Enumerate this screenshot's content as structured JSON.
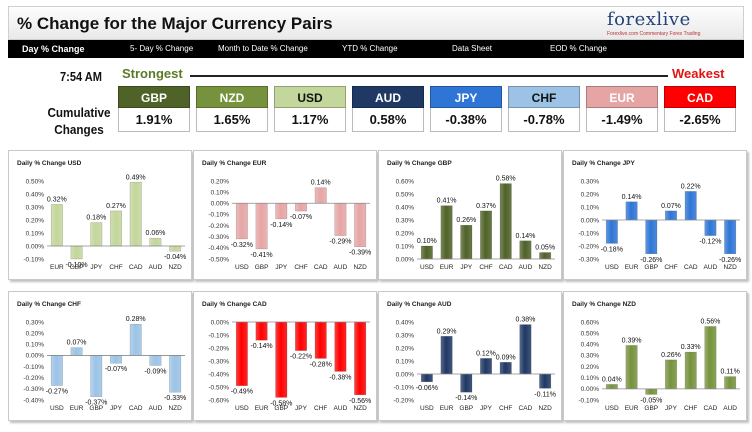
{
  "header": {
    "title": "% Change for the Major Currency Pairs",
    "logo": "forexlive",
    "logo_tagline": "Forexlive.com Commentary Forex Trading"
  },
  "nav": {
    "tabs": [
      {
        "label": "Day % Change",
        "active": true
      },
      {
        "label": "5- Day % Change",
        "active": false
      },
      {
        "label": "Month to Date % Change",
        "active": false
      },
      {
        "label": "YTD % Change",
        "active": false
      },
      {
        "label": "Data Sheet",
        "active": false
      },
      {
        "label": "EOD % Change",
        "active": false
      }
    ]
  },
  "summary": {
    "time": "7:54 AM",
    "strongest_label": "Strongest",
    "weakest_label": "Weakest",
    "cumulative_label_1": "Cumulative",
    "cumulative_label_2": "Changes",
    "currencies": [
      {
        "name": "GBP",
        "value": "1.91%",
        "bg": "#4f6228",
        "fg": "#ffffff"
      },
      {
        "name": "NZD",
        "value": "1.65%",
        "bg": "#76923c",
        "fg": "#ffffff"
      },
      {
        "name": "USD",
        "value": "1.17%",
        "bg": "#c3d69b",
        "fg": "#111111"
      },
      {
        "name": "AUD",
        "value": "0.58%",
        "bg": "#1f3864",
        "fg": "#ffffff"
      },
      {
        "name": "JPY",
        "value": "-0.38%",
        "bg": "#2e75d6",
        "fg": "#ffffff"
      },
      {
        "name": "CHF",
        "value": "-0.78%",
        "bg": "#9cc3e6",
        "fg": "#111111"
      },
      {
        "name": "EUR",
        "value": "-1.49%",
        "bg": "#e6a5a5",
        "fg": "#ffffff"
      },
      {
        "name": "CAD",
        "value": "-2.65%",
        "bg": "#ff0000",
        "fg": "#ffffff"
      }
    ]
  },
  "chart_data": [
    {
      "type": "bar",
      "title": "Daily % Change USD",
      "categories": [
        "EUR",
        "GBP",
        "JPY",
        "CHF",
        "CAD",
        "AUD",
        "NZD"
      ],
      "values": [
        0.32,
        -0.1,
        0.18,
        0.27,
        0.49,
        0.06,
        -0.04
      ],
      "labels": [
        "0.32%",
        "-0.10%",
        "0.18%",
        "0.27%",
        "0.49%",
        "0.06%",
        "-0.04%"
      ],
      "ylim": [
        -0.1,
        0.5
      ],
      "ticks": [
        "-0.10%",
        "0.00%",
        "0.10%",
        "0.20%",
        "0.30%",
        "0.40%",
        "0.50%"
      ],
      "color": "#c3d69b"
    },
    {
      "type": "bar",
      "title": "Daily % Change EUR",
      "categories": [
        "USD",
        "GBP",
        "JPY",
        "CHF",
        "CAD",
        "AUD",
        "NZD"
      ],
      "values": [
        -0.32,
        -0.41,
        -0.14,
        -0.07,
        0.14,
        -0.29,
        -0.39
      ],
      "labels": [
        "-0.32%",
        "-0.41%",
        "-0.14%",
        "-0.07%",
        "0.14%",
        "-0.29%",
        "-0.39%"
      ],
      "ylim": [
        -0.5,
        0.2
      ],
      "ticks": [
        "-0.50%",
        "-0.40%",
        "-0.30%",
        "-0.20%",
        "-0.10%",
        "0.00%",
        "0.10%",
        "0.20%"
      ],
      "color": "#e6a5a5"
    },
    {
      "type": "bar",
      "title": "Daily % Change GBP",
      "categories": [
        "USD",
        "EUR",
        "JPY",
        "CHF",
        "CAD",
        "AUD",
        "NZD"
      ],
      "values": [
        0.1,
        0.41,
        0.26,
        0.37,
        0.58,
        0.14,
        0.05
      ],
      "labels": [
        "0.10%",
        "0.41%",
        "0.26%",
        "0.37%",
        "0.58%",
        "0.14%",
        "0.05%"
      ],
      "ylim": [
        0.0,
        0.6
      ],
      "ticks": [
        "0.00%",
        "0.10%",
        "0.20%",
        "0.30%",
        "0.40%",
        "0.50%",
        "0.60%"
      ],
      "color": "#4f6228"
    },
    {
      "type": "bar",
      "title": "Daily % Change JPY",
      "categories": [
        "USD",
        "EUR",
        "GBP",
        "CHF",
        "CAD",
        "AUD",
        "NZD"
      ],
      "values": [
        -0.18,
        0.14,
        -0.26,
        0.07,
        0.22,
        -0.12,
        -0.26
      ],
      "labels": [
        "-0.18%",
        "0.14%",
        "-0.26%",
        "0.07%",
        "0.22%",
        "-0.12%",
        "-0.26%"
      ],
      "ylim": [
        -0.3,
        0.3
      ],
      "ticks": [
        "-0.30%",
        "-0.20%",
        "-0.10%",
        "0.00%",
        "0.10%",
        "0.20%",
        "0.30%"
      ],
      "color": "#2e75d6"
    },
    {
      "type": "bar",
      "title": "Daily % Change CHF",
      "categories": [
        "USD",
        "EUR",
        "GBP",
        "JPY",
        "CAD",
        "AUD",
        "NZD"
      ],
      "values": [
        -0.27,
        0.07,
        -0.37,
        -0.07,
        0.28,
        -0.09,
        -0.33
      ],
      "labels": [
        "-0.27%",
        "0.07%",
        "-0.37%",
        "-0.07%",
        "0.28%",
        "-0.09%",
        "-0.33%"
      ],
      "ylim": [
        -0.4,
        0.3
      ],
      "ticks": [
        "-0.40%",
        "-0.30%",
        "-0.20%",
        "-0.10%",
        "0.00%",
        "0.10%",
        "0.20%",
        "0.30%"
      ],
      "color": "#9cc3e6"
    },
    {
      "type": "bar",
      "title": "Daily % Change CAD",
      "categories": [
        "USD",
        "EUR",
        "GBP",
        "JPY",
        "CHF",
        "AUD",
        "NZD"
      ],
      "values": [
        -0.49,
        -0.14,
        -0.58,
        -0.22,
        -0.28,
        -0.38,
        -0.56
      ],
      "labels": [
        "-0.49%",
        "-0.14%",
        "-0.58%",
        "-0.22%",
        "-0.28%",
        "-0.38%",
        "-0.56%"
      ],
      "ylim": [
        -0.6,
        0.0
      ],
      "ticks": [
        "-0.60%",
        "-0.50%",
        "-0.40%",
        "-0.30%",
        "-0.20%",
        "-0.10%",
        "0.00%"
      ],
      "color": "#ff0000"
    },
    {
      "type": "bar",
      "title": "Daily % Change AUD",
      "categories": [
        "USD",
        "EUR",
        "GBP",
        "JPY",
        "CHF",
        "CAD",
        "NZD"
      ],
      "values": [
        -0.06,
        0.29,
        -0.14,
        0.12,
        0.09,
        0.38,
        -0.11
      ],
      "labels": [
        "-0.06%",
        "0.29%",
        "-0.14%",
        "0.12%",
        "0.09%",
        "0.38%",
        "-0.11%"
      ],
      "ylim": [
        -0.2,
        0.4
      ],
      "ticks": [
        "-0.20%",
        "-0.10%",
        "0.00%",
        "0.10%",
        "0.20%",
        "0.30%",
        "0.40%"
      ],
      "color": "#1f3864"
    },
    {
      "type": "bar",
      "title": "Daily % Change NZD",
      "categories": [
        "USD",
        "EUR",
        "GBP",
        "JPY",
        "CHF",
        "CAD",
        "AUD"
      ],
      "values": [
        0.04,
        0.39,
        -0.05,
        0.26,
        0.33,
        0.56,
        0.11
      ],
      "labels": [
        "0.04%",
        "0.39%",
        "-0.05%",
        "0.26%",
        "0.33%",
        "0.56%",
        "0.11%"
      ],
      "ylim": [
        -0.1,
        0.6
      ],
      "ticks": [
        "-0.10%",
        "0.00%",
        "0.10%",
        "0.20%",
        "0.30%",
        "0.40%",
        "0.50%",
        "0.60%"
      ],
      "color": "#76923c"
    }
  ]
}
